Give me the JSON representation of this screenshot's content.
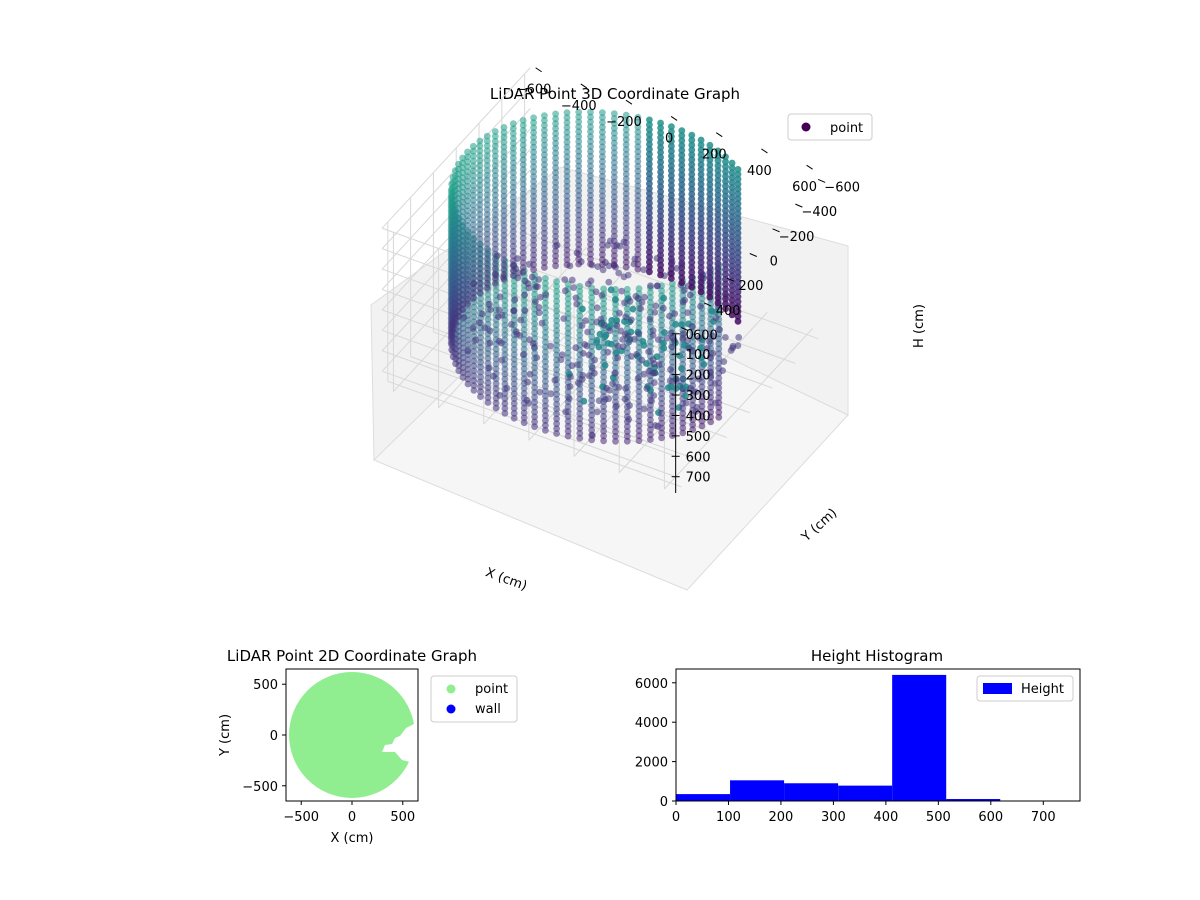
{
  "chart_data": [
    {
      "type": "scatter",
      "title": "LiDAR Point 3D Coordinate Graph",
      "projection": "3d",
      "xlabel": "X (cm)",
      "ylabel": "Y (cm)",
      "zlabel": "H (cm)",
      "xlim": [
        -650,
        650
      ],
      "ylim": [
        -650,
        650
      ],
      "zlim": [
        0,
        780
      ],
      "z_axis_inverted": true,
      "x_ticks": [
        "−600",
        "−400",
        "−200",
        "0",
        "200",
        "400",
        "600"
      ],
      "y_ticks": [
        "−600",
        "−400",
        "−200",
        "0",
        "200",
        "400",
        "600"
      ],
      "z_ticks": [
        "0",
        "100",
        "200",
        "300",
        "400",
        "500",
        "600",
        "700"
      ],
      "grid": true,
      "legend": {
        "placement": "upper-right",
        "entries": [
          {
            "name": "point",
            "color": "#440154"
          }
        ]
      },
      "series": [
        {
          "name": "point",
          "description_color": "viridis",
          "wall_radius": 600,
          "wall_height": [
            0,
            760
          ],
          "wall_gap_deg": [
            -50,
            10
          ]
        }
      ]
    },
    {
      "type": "scatter",
      "title": "LiDAR Point 2D Coordinate Graph",
      "xlabel": "X (cm)",
      "ylabel": "Y (cm)",
      "xlim": [
        -650,
        650
      ],
      "ylim": [
        -650,
        650
      ],
      "x_ticks": [
        "−500",
        "0",
        "500"
      ],
      "y_ticks": [
        "500",
        "0",
        "−500"
      ],
      "legend": {
        "placement": "outside-right",
        "entries": [
          {
            "name": "point",
            "color": "#90ee90"
          },
          {
            "name": "wall",
            "color": "#0000ff"
          }
        ]
      },
      "series": [
        {
          "name": "point",
          "color": "#90ee90",
          "shape": "disc",
          "center": [
            0,
            0
          ],
          "radius": 620
        },
        {
          "name": "wall",
          "color": "#0000ff",
          "points": []
        }
      ]
    },
    {
      "type": "bar",
      "title": "Height Histogram",
      "xlim": [
        0,
        770
      ],
      "ylim": [
        0,
        6700
      ],
      "x_ticks": [
        "0",
        "100",
        "200",
        "300",
        "400",
        "500",
        "600",
        "700"
      ],
      "y_ticks": [
        "0",
        "2000",
        "4000",
        "6000"
      ],
      "legend": {
        "placement": "upper-right",
        "entries": [
          {
            "name": "Height",
            "color": "#0000ff"
          }
        ]
      },
      "series": [
        {
          "name": "Height",
          "color": "#0000ff",
          "bins": [
            0,
            103,
            206,
            309,
            412,
            515,
            618,
            721
          ],
          "values": [
            350,
            1050,
            900,
            780,
            6400,
            100,
            0
          ]
        }
      ]
    }
  ]
}
